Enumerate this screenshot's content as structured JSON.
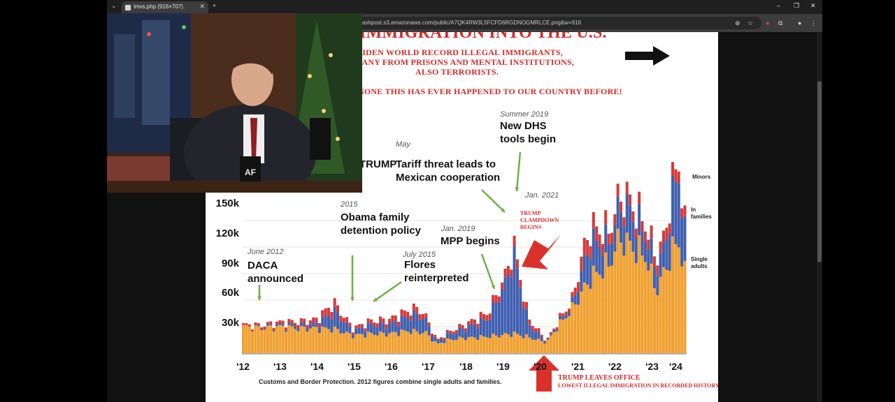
{
  "browser": {
    "tab_title": "imvs.php (916×707)",
    "url": "ashpost.s3.amazonaws.com/public/A7QK4RW3L5FCFD6RGDNOGMRLCE.png&w=916"
  },
  "poster": {
    "headline_top": "IMMIGRATION INTO THE U.S.",
    "headline_lines": [
      "BIDEN WORLD RECORD ILLEGAL IMMIGRANTS,",
      "MANY FROM PRISONS AND MENTAL INSTITUTIONS,",
      "ALSO TERRORISTS.",
      "NONE THIS HAS EVER HAPPENED TO OUR COUNTRY BEFORE!"
    ],
    "annotations": {
      "daca_date": "June 2012",
      "daca": "DACA\nannounced",
      "obama_date": "2015",
      "obama": "Obama family\ndetention policy",
      "flores_date": "July 2015",
      "flores": "Flores\nreinterpreted",
      "mpp_date": "Jan. 2019",
      "mpp": "MPP begins",
      "tariff_date": "May",
      "tariff_prefix": "TRUMP",
      "tariff": "Tariff threat leads to\nMexican cooperation",
      "dhs_date": "Summer 2019",
      "dhs": "New DHS\ntools begin",
      "jan2021_date": "Jan. 2021",
      "clampdown": "TRUMP\nCLAMPDOWN\nBEGINS",
      "leaves_office": "TRUMP LEAVES OFFICE",
      "lowest": "LOWEST ILLEGAL IMMIGRATION IN RECORDED HISTORY!"
    },
    "source": "Customs and Border Protection. 2012 figures combine single adults and families."
  },
  "chart_data": {
    "type": "bar",
    "stacked": true,
    "x_range": [
      "2012-01",
      "2024-02"
    ],
    "x_ticks": [
      "'12",
      "'13",
      "'14",
      "'15",
      "'16",
      "'17",
      "'18",
      "'19",
      "'20",
      "'21",
      "'22",
      "'23",
      "'24"
    ],
    "y_ticks": [
      "30k",
      "60k",
      "90k",
      "120k",
      "150k"
    ],
    "ylim": [
      0,
      160000
    ],
    "series": [
      {
        "name": "Single\nadults",
        "color": "#f0a030",
        "key_points": [
          [
            2012.0,
            30000
          ],
          [
            2012.5,
            28000
          ],
          [
            2013.0,
            30000
          ],
          [
            2013.5,
            28000
          ],
          [
            2014.0,
            28000
          ],
          [
            2014.5,
            27000
          ],
          [
            2015.0,
            20000
          ],
          [
            2015.5,
            22000
          ],
          [
            2016.0,
            22000
          ],
          [
            2016.5,
            25000
          ],
          [
            2017.0,
            23000
          ],
          [
            2017.3,
            10000
          ],
          [
            2017.6,
            15000
          ],
          [
            2018.0,
            17000
          ],
          [
            2018.5,
            18000
          ],
          [
            2019.0,
            20000
          ],
          [
            2019.4,
            22000
          ],
          [
            2019.8,
            18000
          ],
          [
            2020.3,
            12000
          ],
          [
            2020.6,
            30000
          ],
          [
            2021.0,
            50000
          ],
          [
            2021.5,
            85000
          ],
          [
            2022.0,
            100000
          ],
          [
            2022.3,
            130000
          ],
          [
            2022.7,
            118000
          ],
          [
            2023.0,
            110000
          ],
          [
            2023.3,
            70000
          ],
          [
            2023.6,
            100000
          ],
          [
            2023.9,
            130000
          ],
          [
            2024.1,
            85000
          ]
        ]
      },
      {
        "name": "In\nfamilies",
        "color": "#3f5fb0",
        "key_points": [
          [
            2012.0,
            0
          ],
          [
            2013.0,
            2000
          ],
          [
            2014.0,
            5000
          ],
          [
            2014.5,
            20000
          ],
          [
            2015.0,
            5000
          ],
          [
            2015.5,
            10000
          ],
          [
            2016.0,
            10000
          ],
          [
            2016.8,
            20000
          ],
          [
            2017.3,
            3000
          ],
          [
            2018.0,
            10000
          ],
          [
            2018.7,
            20000
          ],
          [
            2019.2,
            60000
          ],
          [
            2019.4,
            90000
          ],
          [
            2019.8,
            15000
          ],
          [
            2020.3,
            1000
          ],
          [
            2021.0,
            5000
          ],
          [
            2021.5,
            40000
          ],
          [
            2022.0,
            25000
          ],
          [
            2022.5,
            40000
          ],
          [
            2023.0,
            25000
          ],
          [
            2023.5,
            25000
          ],
          [
            2023.9,
            80000
          ],
          [
            2024.1,
            40000
          ]
        ]
      },
      {
        "name": "Minors",
        "color": "#d63a3a",
        "key_points": [
          [
            2012.0,
            2000
          ],
          [
            2013.0,
            3000
          ],
          [
            2014.0,
            5000
          ],
          [
            2014.4,
            10000
          ],
          [
            2015.0,
            3000
          ],
          [
            2016.0,
            6000
          ],
          [
            2016.8,
            7000
          ],
          [
            2017.3,
            1500
          ],
          [
            2018.0,
            4000
          ],
          [
            2019.2,
            9000
          ],
          [
            2019.4,
            11000
          ],
          [
            2020.3,
            1000
          ],
          [
            2021.0,
            5000
          ],
          [
            2021.3,
            18000
          ],
          [
            2022.0,
            13000
          ],
          [
            2023.0,
            12000
          ],
          [
            2023.9,
            14000
          ],
          [
            2024.1,
            10000
          ]
        ]
      }
    ]
  },
  "pip": {
    "mug_text": "AF"
  }
}
